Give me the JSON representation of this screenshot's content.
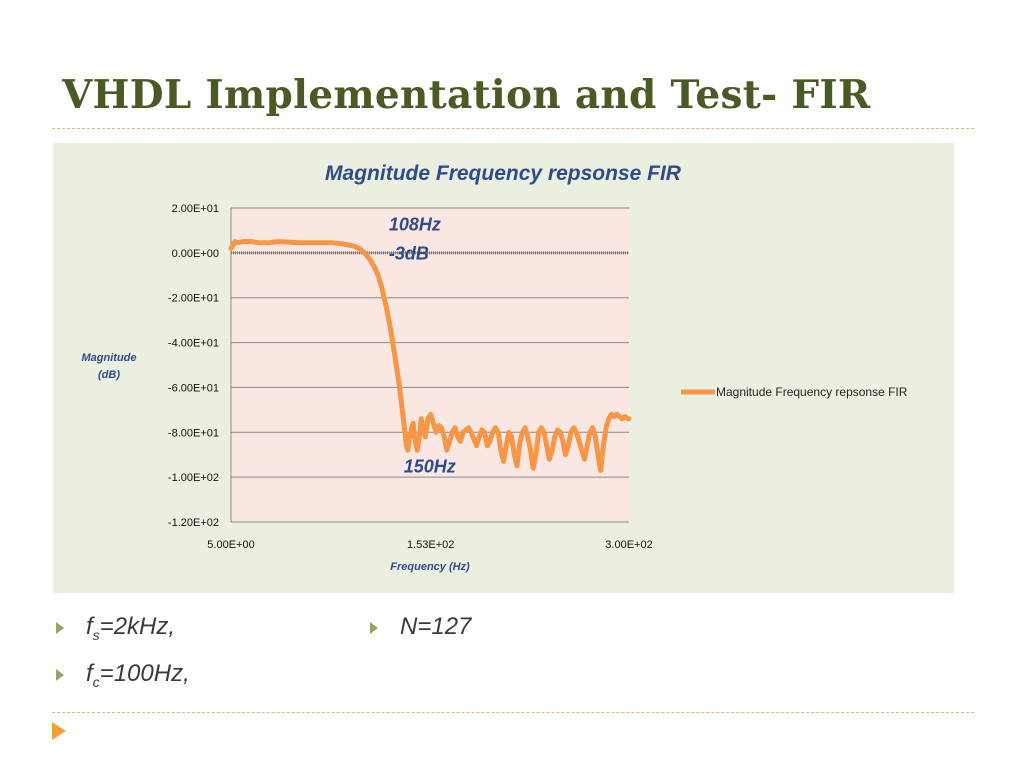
{
  "slide": {
    "title": "VHDL Implementation and Test- FIR"
  },
  "bullets": [
    {
      "main": "f",
      "sub": "s",
      "rest": "=2kHz,"
    },
    {
      "main": "f",
      "sub": "c",
      "rest": "=100Hz,"
    },
    {
      "main": "N=127"
    }
  ],
  "colors": {
    "title": "#4a5a24",
    "series": "#f79646",
    "annotation": "#2e4c8c",
    "plot_bg": "#fbe7e1",
    "panel_bg": "#ebefdf",
    "accent": "#f0a030"
  },
  "chart_data": {
    "type": "line",
    "title": "Magnitude Frequency repsonse FIR",
    "xlabel": "Frequency  (Hz)",
    "ylabel": [
      "Magnitude",
      "(dB)"
    ],
    "legend_label": "Magnitude Frequency repsonse FIR",
    "legend_position": "right",
    "grid": true,
    "xlim": [
      5,
      300
    ],
    "ylim": [
      -120,
      20
    ],
    "xticks": [
      5,
      153,
      300
    ],
    "xtick_labels": [
      "5.00E+00",
      "1.53E+02",
      "3.00E+02"
    ],
    "yticks": [
      20,
      0,
      -20,
      -40,
      -60,
      -80,
      -100,
      -120
    ],
    "ytick_labels": [
      "2.00E+01",
      "0.00E+00",
      "-2.00E+01",
      "-4.00E+01",
      "-6.00E+01",
      "-8.00E+01",
      "-1.00E+02",
      "-1.20E+02"
    ],
    "annotations": [
      {
        "text": "108Hz",
        "x": 122,
        "y": 10
      },
      {
        "text": "-3dB",
        "x": 122,
        "y": -3
      },
      {
        "text": "150Hz",
        "x": 133,
        "y": -98
      }
    ],
    "series": [
      {
        "name": "Magnitude Frequency repsonse FIR",
        "x": [
          5,
          6,
          7,
          8,
          10,
          14,
          20,
          26,
          32,
          40,
          48,
          56,
          64,
          72,
          80,
          88,
          96,
          100,
          104,
          108,
          111,
          114,
          117,
          120,
          123,
          126,
          128,
          130,
          132,
          134,
          135,
          136,
          137,
          139,
          140,
          141,
          143,
          145,
          146,
          147,
          149,
          151,
          153,
          155,
          157,
          159,
          161,
          163,
          165,
          167,
          169,
          171,
          173,
          175,
          177,
          179,
          181,
          183,
          185,
          187,
          189,
          191,
          193,
          195,
          197,
          199,
          201,
          203,
          205,
          207,
          209,
          211,
          213,
          215,
          217,
          219,
          221,
          223,
          225,
          227,
          229,
          231,
          233,
          235,
          237,
          239,
          241,
          243,
          245,
          247,
          249,
          251,
          253,
          255,
          257,
          259,
          261,
          263,
          265,
          267,
          269,
          271,
          273,
          275,
          277,
          279,
          281,
          283,
          285,
          287,
          289,
          291,
          293,
          295,
          297,
          299,
          300
        ],
        "values": [
          2,
          3,
          4,
          5,
          4.5,
          5,
          5,
          4.5,
          4.5,
          5,
          4.8,
          4.5,
          4.5,
          4.5,
          4.5,
          4,
          3,
          2,
          0,
          -3,
          -6,
          -10,
          -16,
          -24,
          -33,
          -44,
          -52,
          -60,
          -70,
          -80,
          -86,
          -88,
          -84,
          -78,
          -76,
          -82,
          -88,
          -80,
          -74,
          -77,
          -82,
          -74,
          -72,
          -76,
          -80,
          -77,
          -78,
          -82,
          -88,
          -84,
          -80,
          -78,
          -82,
          -84,
          -80,
          -79,
          -78,
          -80,
          -83,
          -86,
          -82,
          -79,
          -80,
          -86,
          -84,
          -80,
          -78,
          -80,
          -88,
          -93,
          -86,
          -80,
          -82,
          -90,
          -95,
          -85,
          -80,
          -78,
          -82,
          -88,
          -96,
          -90,
          -80,
          -78,
          -80,
          -86,
          -92,
          -88,
          -82,
          -79,
          -80,
          -84,
          -90,
          -86,
          -80,
          -78,
          -80,
          -84,
          -88,
          -92,
          -86,
          -80,
          -78,
          -82,
          -90,
          -97,
          -86,
          -78,
          -74,
          -72,
          -73,
          -72,
          -73,
          -74,
          -73,
          -74,
          -74
        ]
      }
    ]
  }
}
